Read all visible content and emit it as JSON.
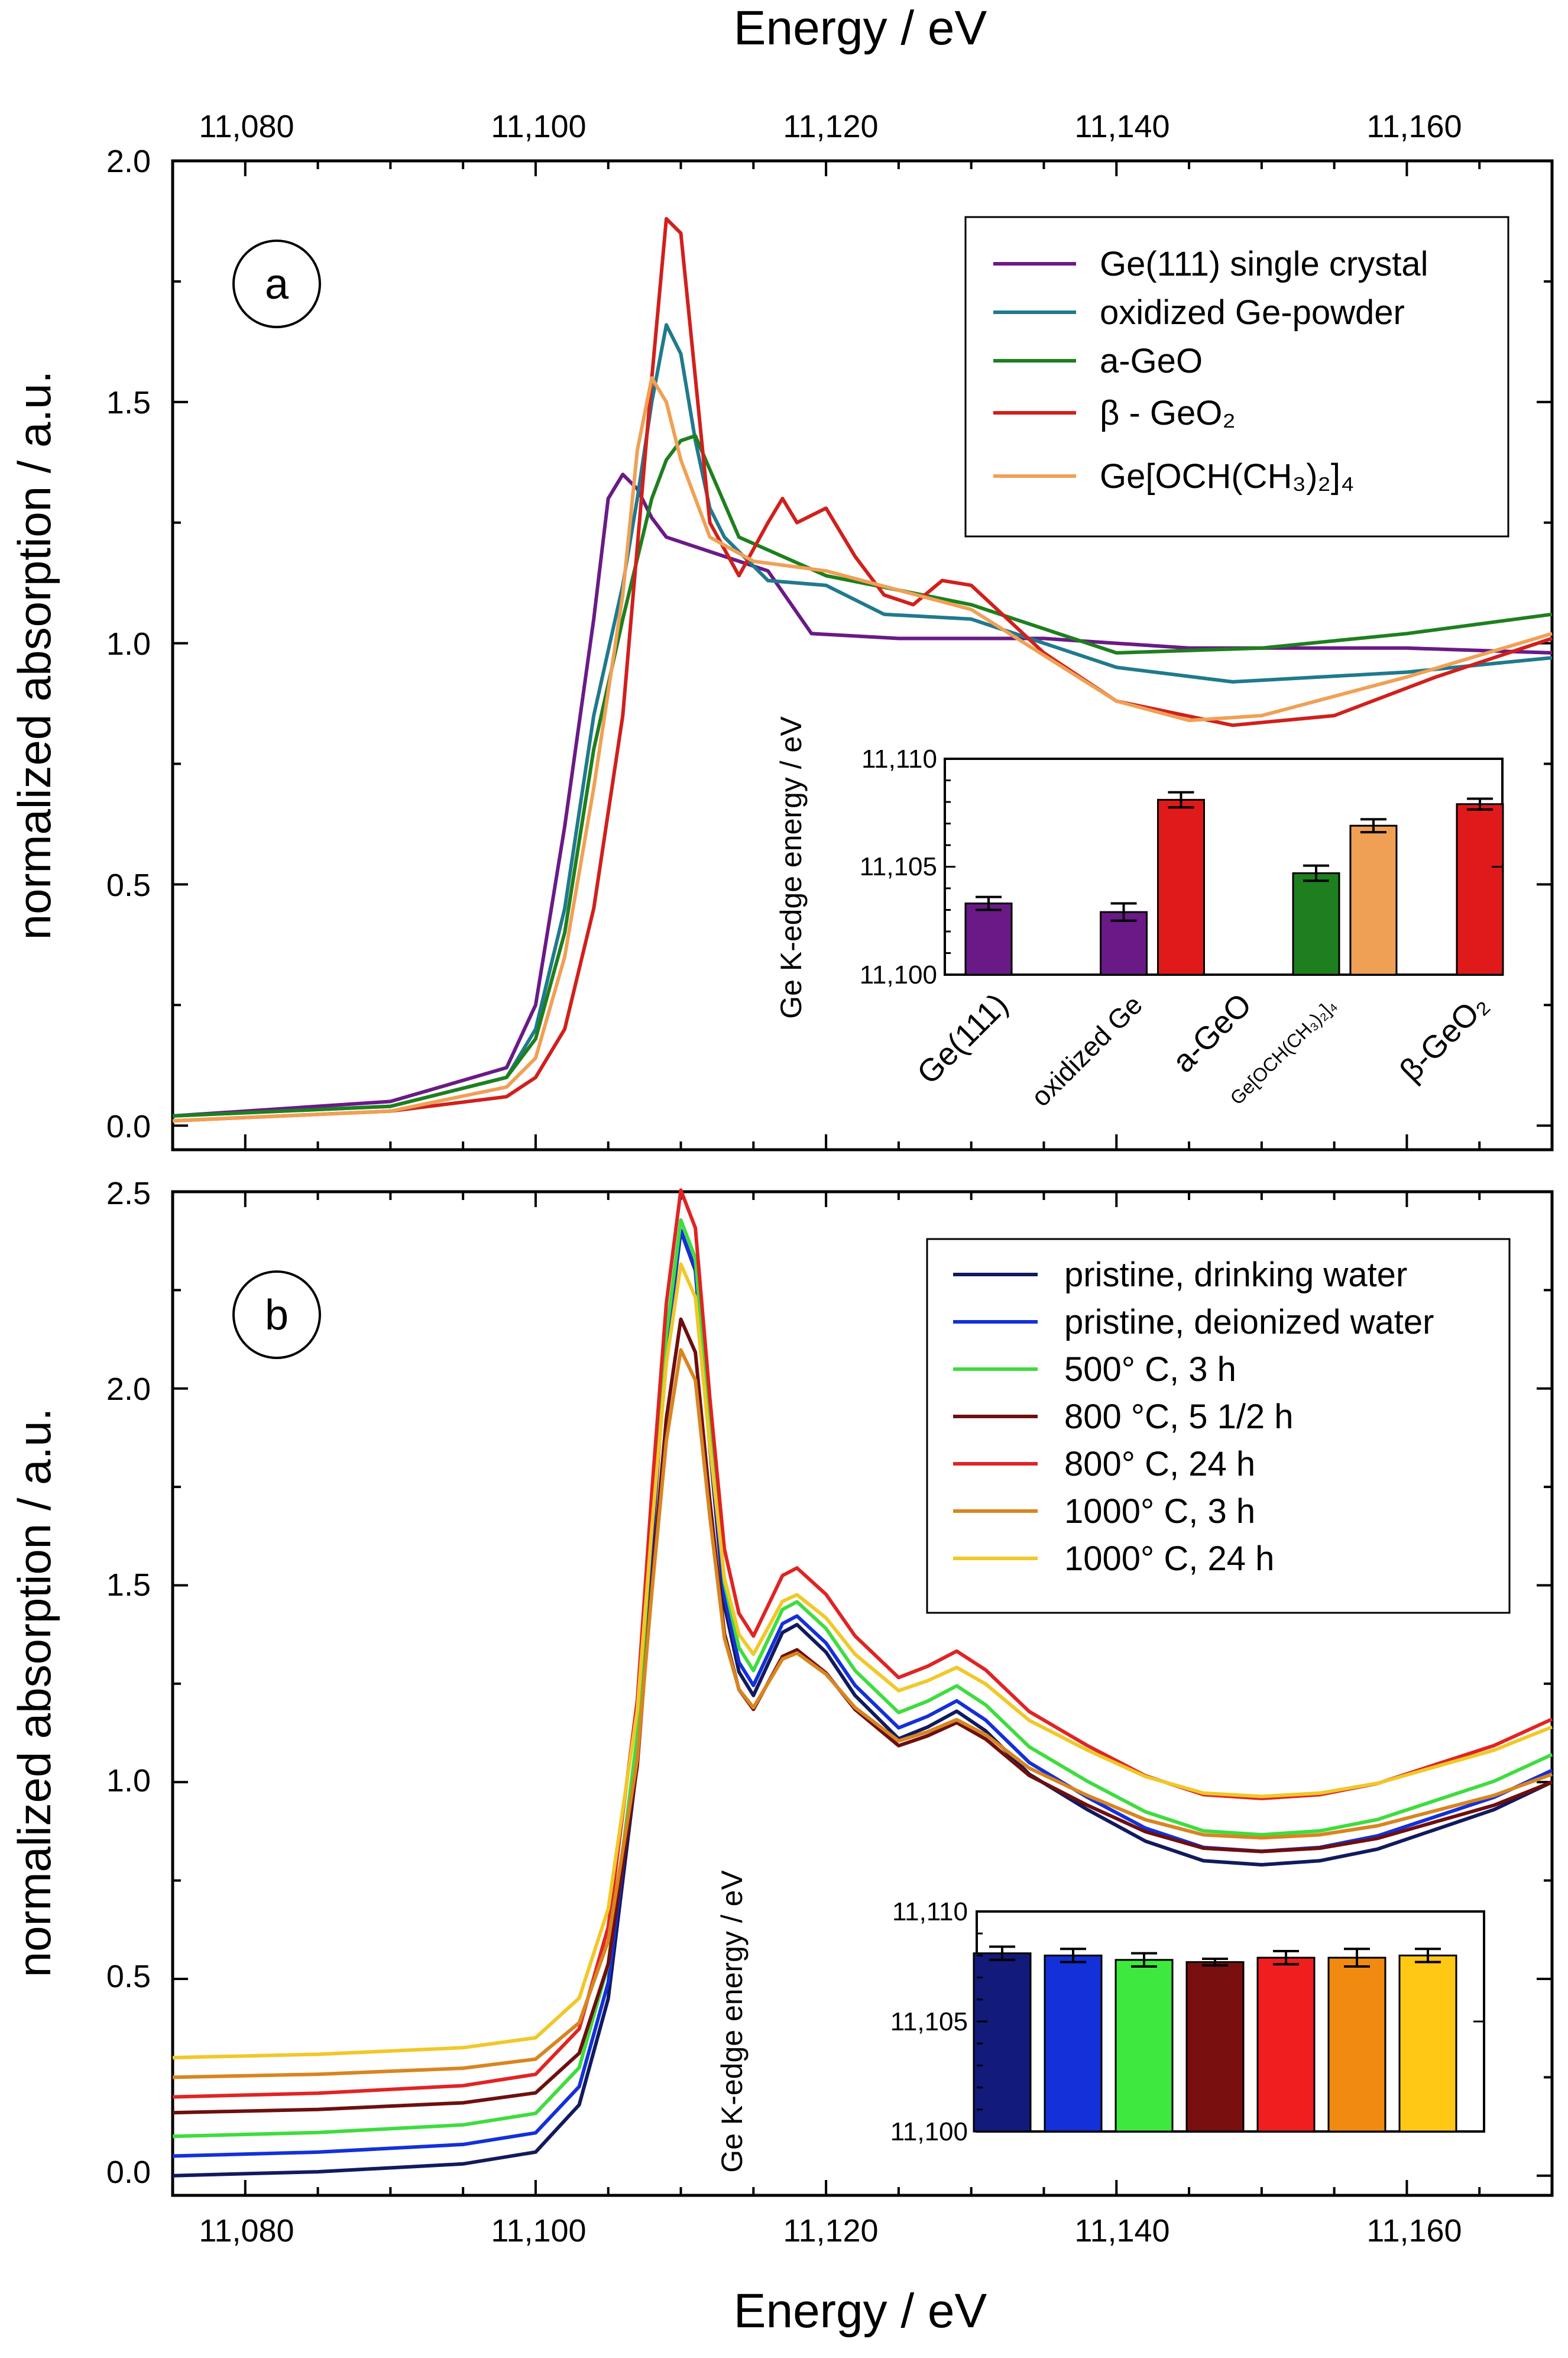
{
  "figure": {
    "top_xlabel": "Energy / eV",
    "bottom_xlabel": "Energy / eV",
    "x_tick_labels": [
      "11,080",
      "11,100",
      "11,120",
      "11,140",
      "11,160"
    ]
  },
  "chart_data": [
    {
      "id": "panel-a",
      "type": "line",
      "panel_label": "a",
      "xlabel": "Energy / eV",
      "ylabel": "normalized absorption / a.u.",
      "xlim": [
        11075,
        11170
      ],
      "ylim": [
        -0.05,
        2.0
      ],
      "x_ticks": [
        11080,
        11100,
        11120,
        11140,
        11160
      ],
      "y_ticks": [
        0.0,
        0.5,
        1.0,
        1.5,
        2.0
      ],
      "y_tick_labels": [
        "0.0",
        "0.5",
        "1.0",
        "1.5",
        "2.0"
      ],
      "legend_position": "top-right",
      "series": [
        {
          "name": "Ge(111) single crystal",
          "color": "#6a1a86",
          "x": [
            11075,
            11090,
            11098,
            11100,
            11102,
            11104,
            11105,
            11106,
            11107,
            11108,
            11109,
            11112,
            11116,
            11119,
            11125,
            11135,
            11145,
            11160,
            11170
          ],
          "y": [
            0.02,
            0.05,
            0.12,
            0.25,
            0.62,
            1.05,
            1.3,
            1.35,
            1.32,
            1.26,
            1.22,
            1.19,
            1.15,
            1.02,
            1.01,
            1.01,
            0.99,
            0.99,
            0.98
          ]
        },
        {
          "name": "oxidized Ge-powder",
          "color": "#1f7a8c",
          "x": [
            11075,
            11090,
            11098,
            11100,
            11102,
            11104,
            11106,
            11107,
            11108,
            11109,
            11110,
            11111,
            11112,
            11113,
            11116,
            11120,
            11124,
            11130,
            11140,
            11148,
            11160,
            11170
          ],
          "y": [
            0.02,
            0.04,
            0.1,
            0.2,
            0.45,
            0.85,
            1.12,
            1.3,
            1.5,
            1.66,
            1.6,
            1.42,
            1.28,
            1.22,
            1.13,
            1.12,
            1.06,
            1.05,
            0.95,
            0.92,
            0.94,
            0.97
          ]
        },
        {
          "name": "a-GeO",
          "color": "#1e7f1e",
          "x": [
            11075,
            11090,
            11098,
            11100,
            11102,
            11104,
            11106,
            11108,
            11109,
            11110,
            11111,
            11112,
            11114,
            11120,
            11130,
            11140,
            11150,
            11160,
            11170
          ],
          "y": [
            0.02,
            0.04,
            0.1,
            0.18,
            0.4,
            0.78,
            1.05,
            1.3,
            1.38,
            1.42,
            1.43,
            1.36,
            1.22,
            1.14,
            1.08,
            0.98,
            0.99,
            1.02,
            1.06
          ]
        },
        {
          "name": "β - GeO₂",
          "color": "#d0201c",
          "x": [
            11075,
            11090,
            11098,
            11100,
            11102,
            11104,
            11106,
            11107,
            11108,
            11109,
            11110,
            11111,
            11112,
            11114,
            11116,
            11117,
            11118,
            11120,
            11122,
            11124,
            11126,
            11128,
            11130,
            11135,
            11140,
            11148,
            11155,
            11162,
            11170
          ],
          "y": [
            0.01,
            0.03,
            0.06,
            0.1,
            0.2,
            0.45,
            0.85,
            1.2,
            1.55,
            1.88,
            1.85,
            1.55,
            1.25,
            1.14,
            1.25,
            1.3,
            1.25,
            1.28,
            1.18,
            1.1,
            1.08,
            1.13,
            1.12,
            0.98,
            0.88,
            0.83,
            0.85,
            0.93,
            1.01
          ]
        },
        {
          "name": "Ge[OCH(CH₃)₂]₄",
          "color": "#f0a055",
          "x": [
            11075,
            11090,
            11098,
            11100,
            11102,
            11104,
            11106,
            11107,
            11108,
            11109,
            11110,
            11112,
            11115,
            11120,
            11130,
            11140,
            11145,
            11150,
            11160,
            11170
          ],
          "y": [
            0.01,
            0.03,
            0.08,
            0.14,
            0.35,
            0.7,
            1.1,
            1.4,
            1.55,
            1.5,
            1.38,
            1.22,
            1.17,
            1.15,
            1.07,
            0.88,
            0.84,
            0.85,
            0.93,
            1.02
          ]
        }
      ]
    },
    {
      "id": "panel-b",
      "type": "line",
      "panel_label": "b",
      "xlabel": "Energy / eV",
      "ylabel": "normalized absorption / a.u.",
      "xlim": [
        11075,
        11170
      ],
      "ylim": [
        -0.05,
        2.5
      ],
      "x_ticks": [
        11080,
        11100,
        11120,
        11140,
        11160
      ],
      "y_ticks": [
        0.0,
        0.5,
        1.0,
        1.5,
        2.0,
        2.5
      ],
      "y_tick_labels": [
        "0.0",
        "0.5",
        "1.0",
        "1.5",
        "2.0",
        "2.5"
      ],
      "legend_position": "top-right",
      "template": {
        "x": [
          11075,
          11085,
          11095,
          11100,
          11103,
          11105,
          11107,
          11108,
          11109,
          11110,
          11111,
          11112,
          11113,
          11114,
          11115,
          11116,
          11117,
          11118,
          11120,
          11122,
          11125,
          11127,
          11129,
          11131,
          11134,
          11138,
          11142,
          11146,
          11150,
          11154,
          11158,
          11162,
          11166,
          11170
        ],
        "shape": [
          0.0,
          0.01,
          0.03,
          0.06,
          0.18,
          0.45,
          1.05,
          1.6,
          2.1,
          2.4,
          2.3,
          1.85,
          1.45,
          1.28,
          1.22,
          1.3,
          1.38,
          1.4,
          1.33,
          1.22,
          1.11,
          1.14,
          1.18,
          1.13,
          1.02,
          0.93,
          0.85,
          0.8,
          0.79,
          0.8,
          0.83,
          0.88,
          0.93,
          1.0
        ]
      },
      "series": [
        {
          "name": "pristine, drinking water",
          "color": "#121a5e",
          "offset": 0.0,
          "scale": 1.0
        },
        {
          "name": "pristine, deionized water",
          "color": "#1430d8",
          "offset": 0.05,
          "scale": 0.98
        },
        {
          "name": "500° C, 3 h",
          "color": "#3fdc3f",
          "offset": 0.1,
          "scale": 0.97
        },
        {
          "name": "800 °C, 5 1/2 h",
          "color": "#6e0f0f",
          "offset": 0.16,
          "scale": 0.84
        },
        {
          "name": "800° C, 24 h",
          "color": "#e02424",
          "offset": 0.2,
          "scale": 0.96
        },
        {
          "name": "1000° C, 3 h",
          "color": "#d88520",
          "offset": 0.25,
          "scale": 0.77
        },
        {
          "name": "1000° C, 24 h",
          "color": "#f0c828",
          "offset": 0.3,
          "scale": 0.84
        }
      ]
    }
  ],
  "insets": [
    {
      "id": "inset-a",
      "type": "bar",
      "ylabel": "Ge K-edge energy / eV",
      "ylim": [
        11100,
        11110
      ],
      "y_tick_labels": [
        "11,100",
        "11,105",
        "11,110"
      ],
      "groups": [
        {
          "label": "Ge(111)",
          "sublabel": ""
        },
        {
          "label": "oxidized Ge",
          "sublabel": ""
        },
        {
          "label": "a-GeO",
          "sublabel": "Ge[OCH(CH₃)₂]₄"
        },
        {
          "label": "β-GeO₂",
          "sublabel": ""
        }
      ],
      "bars": [
        {
          "value": 11103.3,
          "error": 0.3,
          "color": "#6a1a86",
          "slot": 0
        },
        {
          "value": 11102.9,
          "error": 0.4,
          "color": "#6a1a86",
          "slot": 1.65
        },
        {
          "value": 11108.1,
          "error": 0.35,
          "color": "#e01a1a",
          "slot": 2.35
        },
        {
          "value": 11104.7,
          "error": 0.35,
          "color": "#1e7f1e",
          "slot": 4.0
        },
        {
          "value": 11106.9,
          "error": 0.3,
          "color": "#f0a055",
          "slot": 4.7
        },
        {
          "value": 11107.9,
          "error": 0.25,
          "color": "#e01a1a",
          "slot": 6.0
        }
      ]
    },
    {
      "id": "inset-b",
      "type": "bar",
      "ylabel": "Ge K-edge energy / eV",
      "ylim": [
        11100,
        11110
      ],
      "y_tick_labels": [
        "11,100",
        "11,105",
        "11,110"
      ],
      "bars": [
        {
          "value": 11108.1,
          "error": 0.3,
          "color": "#121a7a"
        },
        {
          "value": 11108.0,
          "error": 0.3,
          "color": "#1430d8"
        },
        {
          "value": 11107.8,
          "error": 0.3,
          "color": "#3fe83f"
        },
        {
          "value": 11107.7,
          "error": 0.15,
          "color": "#7a0f0f"
        },
        {
          "value": 11107.9,
          "error": 0.3,
          "color": "#f01e1e"
        },
        {
          "value": 11107.9,
          "error": 0.4,
          "color": "#f08a10"
        },
        {
          "value": 11108.0,
          "error": 0.3,
          "color": "#ffc814"
        }
      ]
    }
  ]
}
